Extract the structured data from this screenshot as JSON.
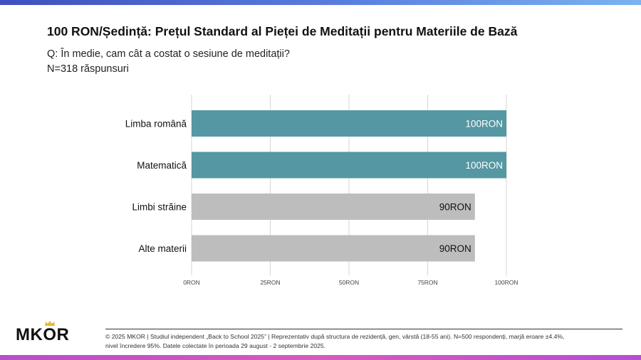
{
  "header": {
    "title": "100 RON/Ședință: Prețul Standard al Pieței de Meditații pentru Materiile de Bază",
    "question": "Q: În medie, cam cât a costat o sesiune de meditații?",
    "sample": "N=318 răspunsuri"
  },
  "chart_data": {
    "type": "bar",
    "orientation": "horizontal",
    "categories": [
      "Limba română",
      "Matematică",
      "Limbi străine",
      "Alte materii"
    ],
    "values": [
      100,
      100,
      90,
      90
    ],
    "value_labels": [
      "100RON",
      "100RON",
      "90RON",
      "90RON"
    ],
    "bar_colors": [
      "#5597a2",
      "#5597a2",
      "#bdbdbd",
      "#bdbdbd"
    ],
    "value_label_colors": [
      "#ffffff",
      "#ffffff",
      "#111111",
      "#111111"
    ],
    "xlim": [
      0,
      100
    ],
    "xticks": [
      0,
      25,
      50,
      75,
      100
    ],
    "xtick_labels": [
      "0RON",
      "25RON",
      "50RON",
      "75RON",
      "100RON"
    ],
    "grid": true,
    "title": "",
    "xlabel": "",
    "ylabel": ""
  },
  "footer": {
    "logo_text": "MKOR",
    "crown_color": "#e8b830",
    "line1": "© 2025 MKOR | Studiul independent „Back to School 2025” | Reprezentativ după structura de rezidență, gen, vârstă (18-55 ani). N=500 respondenți, marjă eroare ±4.4%,",
    "line2": "nivel încredere 95%. Datele colectate în perioada 29 august - 2 septembrie 2025."
  }
}
